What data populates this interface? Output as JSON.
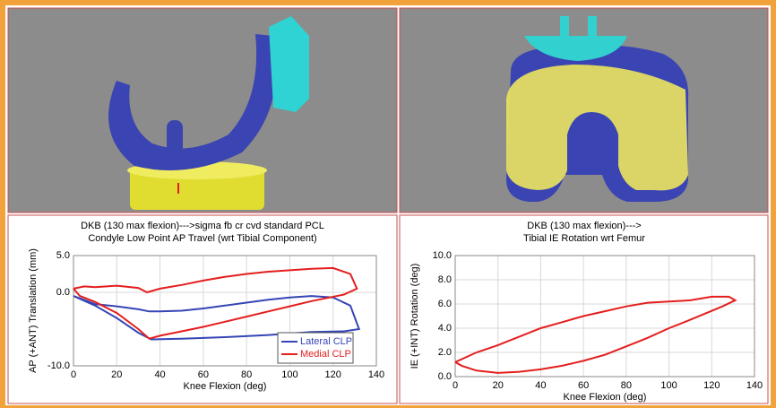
{
  "chart_data": [
    {
      "type": "line",
      "title": "DKB (130 max flexion)--->sigma fb cr cvd standard PCL",
      "subtitle": "Condyle Low Point AP Travel (wrt Tibial Component)",
      "x_label": "Knee Flexion (deg)",
      "y_label": "AP (+ANT) Translation (mm)",
      "xlim": [
        0,
        140
      ],
      "xticks": [
        0,
        20,
        40,
        60,
        80,
        100,
        120,
        140
      ],
      "ylim": [
        -10,
        5
      ],
      "yticks": [
        {
          "value": 5,
          "label": "5.0"
        },
        {
          "value": 0,
          "label": "0.0"
        },
        {
          "value": -10,
          "label": "-10.0"
        }
      ],
      "grid": true,
      "legend": "lower right",
      "series": [
        {
          "name": "Lateral CLP",
          "color": "#3545b5",
          "x": [
            0,
            10,
            20,
            30,
            35,
            40,
            50,
            60,
            70,
            80,
            90,
            100,
            110,
            120,
            128,
            132,
            125,
            110,
            90,
            70,
            50,
            36,
            30,
            20,
            10,
            0
          ],
          "values": [
            -0.5,
            -1.6,
            -1.9,
            -2.3,
            -2.6,
            -2.6,
            -2.5,
            -2.2,
            -1.8,
            -1.4,
            -1.0,
            -0.7,
            -0.5,
            -0.7,
            -1.8,
            -5.0,
            -5.3,
            -5.4,
            -5.8,
            -6.1,
            -6.3,
            -6.4,
            -5.5,
            -3.5,
            -1.8,
            -0.5
          ]
        },
        {
          "name": "Medial CLP",
          "color": "#e51e1e",
          "x": [
            0,
            5,
            10,
            20,
            30,
            34,
            40,
            50,
            60,
            70,
            80,
            90,
            100,
            110,
            120,
            128,
            131,
            125,
            110,
            100,
            90,
            80,
            70,
            60,
            50,
            40,
            35,
            30,
            20,
            10,
            3,
            0
          ],
          "values": [
            0.5,
            0.8,
            0.7,
            0.9,
            0.6,
            0.0,
            0.5,
            1.0,
            1.6,
            2.1,
            2.5,
            2.8,
            3.0,
            3.2,
            3.3,
            2.5,
            0.5,
            -0.3,
            -1.2,
            -1.9,
            -2.6,
            -3.3,
            -4.0,
            -4.7,
            -5.3,
            -5.9,
            -6.3,
            -5.0,
            -2.8,
            -1.3,
            -0.5,
            0.5
          ]
        }
      ]
    },
    {
      "type": "line",
      "title": "DKB (130 max flexion)--->",
      "subtitle": "Tibial IE Rotation wrt Femur",
      "x_label": "Knee Flexion (deg)",
      "y_label": "IE (+INT) Rotation (deg)",
      "xlim": [
        0,
        140
      ],
      "xticks": [
        0,
        20,
        40,
        60,
        80,
        100,
        120,
        140
      ],
      "ylim": [
        0,
        10
      ],
      "yticks": [
        {
          "value": 0,
          "label": "0.0"
        },
        {
          "value": 2,
          "label": "2.0"
        },
        {
          "value": 4,
          "label": "4.0"
        },
        {
          "value": 6,
          "label": "6.0"
        },
        {
          "value": 8,
          "label": "8.0"
        },
        {
          "value": 10,
          "label": "10.0"
        }
      ],
      "grid": true,
      "series": [
        {
          "color": "#e51e1e",
          "x": [
            0,
            10,
            20,
            30,
            40,
            50,
            60,
            70,
            80,
            90,
            100,
            110,
            120,
            128,
            131,
            125,
            110,
            100,
            90,
            80,
            70,
            60,
            50,
            40,
            30,
            20,
            10,
            3,
            0
          ],
          "values": [
            1.2,
            2.0,
            2.6,
            3.3,
            4.0,
            4.5,
            5.0,
            5.4,
            5.8,
            6.1,
            6.2,
            6.3,
            6.6,
            6.6,
            6.3,
            5.8,
            4.7,
            4.0,
            3.2,
            2.5,
            1.8,
            1.3,
            0.9,
            0.6,
            0.4,
            0.3,
            0.5,
            0.9,
            1.2
          ]
        }
      ]
    }
  ]
}
